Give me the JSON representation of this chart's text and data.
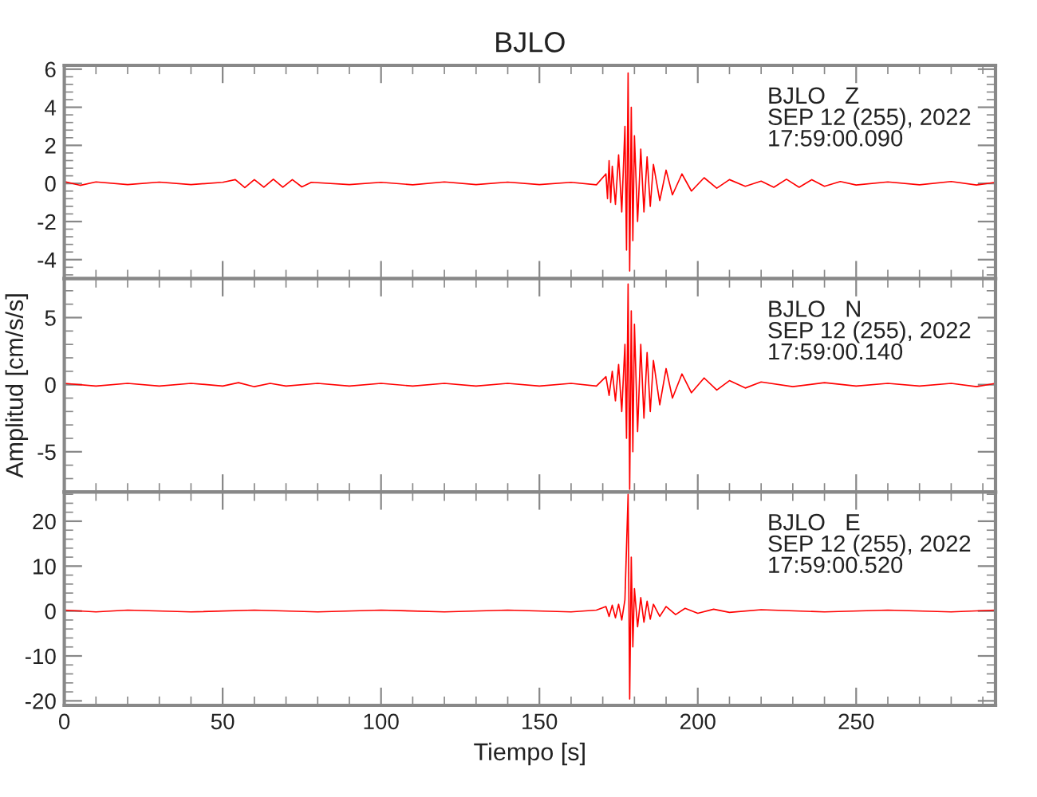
{
  "chart_data": [
    {
      "type": "line",
      "title": "BJLO",
      "tick_labels": "y",
      "xlim": [
        0,
        294
      ],
      "xticks": [
        0,
        50,
        100,
        150,
        200,
        250
      ],
      "ylim": [
        -5,
        6.2
      ],
      "yticks": [
        -4,
        -2,
        0,
        2,
        4,
        6
      ],
      "grid": false,
      "legend": false,
      "annotations": [
        "BJLO   Z",
        "SEP 12 (255), 2022",
        "17:59:00.090"
      ],
      "series": [
        {
          "color": "#ff0000",
          "x": [
            0,
            5,
            10,
            20,
            30,
            40,
            50,
            54,
            57,
            60,
            63,
            66,
            69,
            72,
            75,
            78,
            90,
            100,
            110,
            120,
            130,
            140,
            150,
            160,
            168,
            171,
            171.5,
            172,
            172.5,
            173,
            174,
            175,
            176,
            177,
            177.5,
            178,
            178.5,
            179,
            179.5,
            180,
            181,
            182,
            183,
            184,
            185,
            186,
            188,
            190,
            192,
            195,
            198,
            202,
            206,
            210,
            215,
            220,
            224,
            228,
            232,
            236,
            240,
            245,
            250,
            260,
            270,
            280,
            288,
            294
          ],
          "values": [
            0.1,
            -0.1,
            0.08,
            -0.06,
            0.07,
            -0.06,
            0.06,
            0.2,
            -0.22,
            0.2,
            -0.2,
            0.22,
            -0.2,
            0.2,
            -0.18,
            0.06,
            -0.06,
            0.06,
            -0.07,
            0.08,
            -0.06,
            0.07,
            -0.06,
            0.06,
            -0.07,
            0.5,
            -0.8,
            1.2,
            -1.0,
            0.9,
            -1.1,
            1.5,
            -1.5,
            3.0,
            -3.5,
            5.8,
            -4.6,
            4.0,
            -3.0,
            2.5,
            -2.0,
            1.8,
            -1.5,
            1.4,
            -1.2,
            1.0,
            -0.9,
            0.7,
            -0.6,
            0.5,
            -0.4,
            0.3,
            -0.25,
            0.2,
            -0.15,
            0.12,
            -0.2,
            0.22,
            -0.2,
            0.2,
            -0.15,
            0.1,
            -0.08,
            0.08,
            -0.07,
            0.1,
            -0.08,
            0.06
          ]
        }
      ]
    },
    {
      "type": "line",
      "ylabel": "Amplitud [cm/s/s]",
      "tick_labels": "y",
      "xlim": [
        0,
        294
      ],
      "xticks": [
        0,
        50,
        100,
        150,
        200,
        250
      ],
      "ylim": [
        -8,
        7.9
      ],
      "yticks": [
        -5,
        0,
        5
      ],
      "grid": false,
      "legend": false,
      "annotations": [
        "BJLO   N",
        "SEP 12 (255), 2022",
        "17:59:00.140"
      ],
      "series": [
        {
          "color": "#ff0000",
          "x": [
            0,
            10,
            20,
            30,
            40,
            50,
            55,
            60,
            65,
            70,
            80,
            90,
            100,
            110,
            120,
            130,
            140,
            150,
            160,
            168,
            171,
            172,
            173,
            174,
            175,
            176,
            177,
            177.5,
            178,
            178.5,
            179,
            179.5,
            180,
            181,
            182,
            183,
            184,
            185,
            186,
            188,
            190,
            192,
            195,
            198,
            202,
            206,
            210,
            215,
            220,
            230,
            240,
            250,
            260,
            270,
            280,
            288,
            294
          ],
          "values": [
            0.1,
            -0.1,
            0.1,
            -0.1,
            0.1,
            -0.1,
            0.15,
            -0.15,
            0.1,
            -0.1,
            0.1,
            -0.1,
            0.1,
            -0.1,
            0.1,
            -0.1,
            0.1,
            -0.1,
            0.1,
            -0.1,
            0.6,
            -0.8,
            1.0,
            -1.2,
            1.5,
            -2.0,
            3.0,
            -4.0,
            7.5,
            -7.8,
            5.5,
            -5.0,
            4.5,
            -3.5,
            3.0,
            -2.5,
            2.4,
            -2.0,
            1.8,
            -1.5,
            1.2,
            -1.0,
            0.8,
            -0.6,
            0.5,
            -0.4,
            0.3,
            -0.25,
            0.2,
            -0.15,
            0.15,
            -0.1,
            0.1,
            -0.1,
            0.1,
            -0.15,
            0.1
          ]
        }
      ]
    },
    {
      "type": "line",
      "xlabel": "Tiempo [s]",
      "xlim": [
        0,
        294
      ],
      "xticks": [
        0,
        50,
        100,
        150,
        200,
        250
      ],
      "ylim": [
        -21,
        26.5
      ],
      "yticks": [
        -20,
        -10,
        0,
        10,
        20
      ],
      "grid": false,
      "legend": false,
      "annotations": [
        "BJLO   E",
        "SEP 12 (255), 2022",
        "17:59:00.520"
      ],
      "series": [
        {
          "color": "#ff0000",
          "x": [
            0,
            10,
            20,
            40,
            60,
            80,
            100,
            120,
            140,
            160,
            168,
            171,
            172,
            173,
            174,
            175,
            176,
            177,
            178,
            178.5,
            179,
            179.5,
            180,
            181,
            182,
            183,
            184,
            185,
            186,
            188,
            190,
            193,
            196,
            200,
            205,
            210,
            220,
            240,
            260,
            280,
            294
          ],
          "values": [
            0.2,
            -0.2,
            0.2,
            -0.2,
            0.2,
            -0.2,
            0.2,
            -0.2,
            0.2,
            -0.2,
            0.2,
            1.0,
            -1.2,
            1.3,
            -1.5,
            1.5,
            -2.0,
            2.5,
            26.0,
            -19.6,
            12.0,
            -8.0,
            5.0,
            -3.5,
            3.0,
            -2.5,
            2.2,
            -1.8,
            1.5,
            -1.2,
            1.0,
            -0.8,
            0.6,
            -0.5,
            0.4,
            -0.3,
            0.3,
            -0.2,
            0.2,
            -0.2,
            0.2
          ]
        }
      ]
    }
  ]
}
